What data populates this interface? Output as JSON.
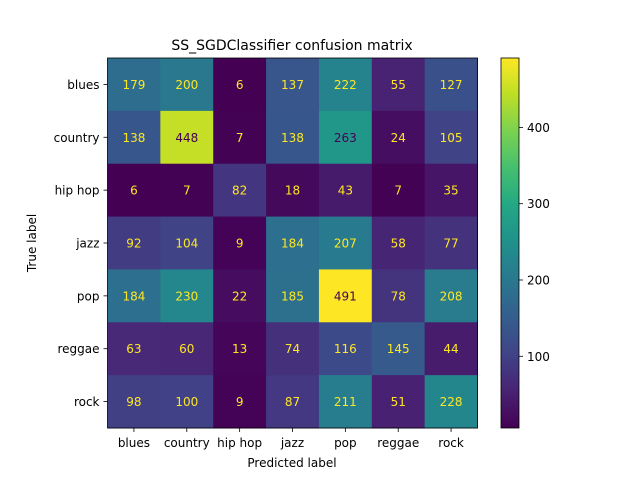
{
  "chart_data": {
    "type": "heatmap",
    "title": "SS_SGDClassifier confusion matrix",
    "xlabel": "Predicted label",
    "ylabel": "True label",
    "x_categories": [
      "blues",
      "country",
      "hip hop",
      "jazz",
      "pop",
      "reggae",
      "rock"
    ],
    "y_categories": [
      "blues",
      "country",
      "hip hop",
      "jazz",
      "pop",
      "reggae",
      "rock"
    ],
    "values": [
      [
        179,
        200,
        6,
        137,
        222,
        55,
        127
      ],
      [
        138,
        448,
        7,
        138,
        263,
        24,
        105
      ],
      [
        6,
        7,
        82,
        18,
        43,
        7,
        35
      ],
      [
        92,
        104,
        9,
        184,
        207,
        58,
        77
      ],
      [
        184,
        230,
        22,
        185,
        491,
        78,
        208
      ],
      [
        63,
        60,
        13,
        74,
        116,
        145,
        44
      ],
      [
        98,
        100,
        9,
        87,
        211,
        51,
        228
      ]
    ],
    "colormap": "viridis",
    "value_range": [
      6,
      491
    ],
    "colorbar_ticks": [
      100,
      200,
      300,
      400
    ],
    "grid": false
  }
}
